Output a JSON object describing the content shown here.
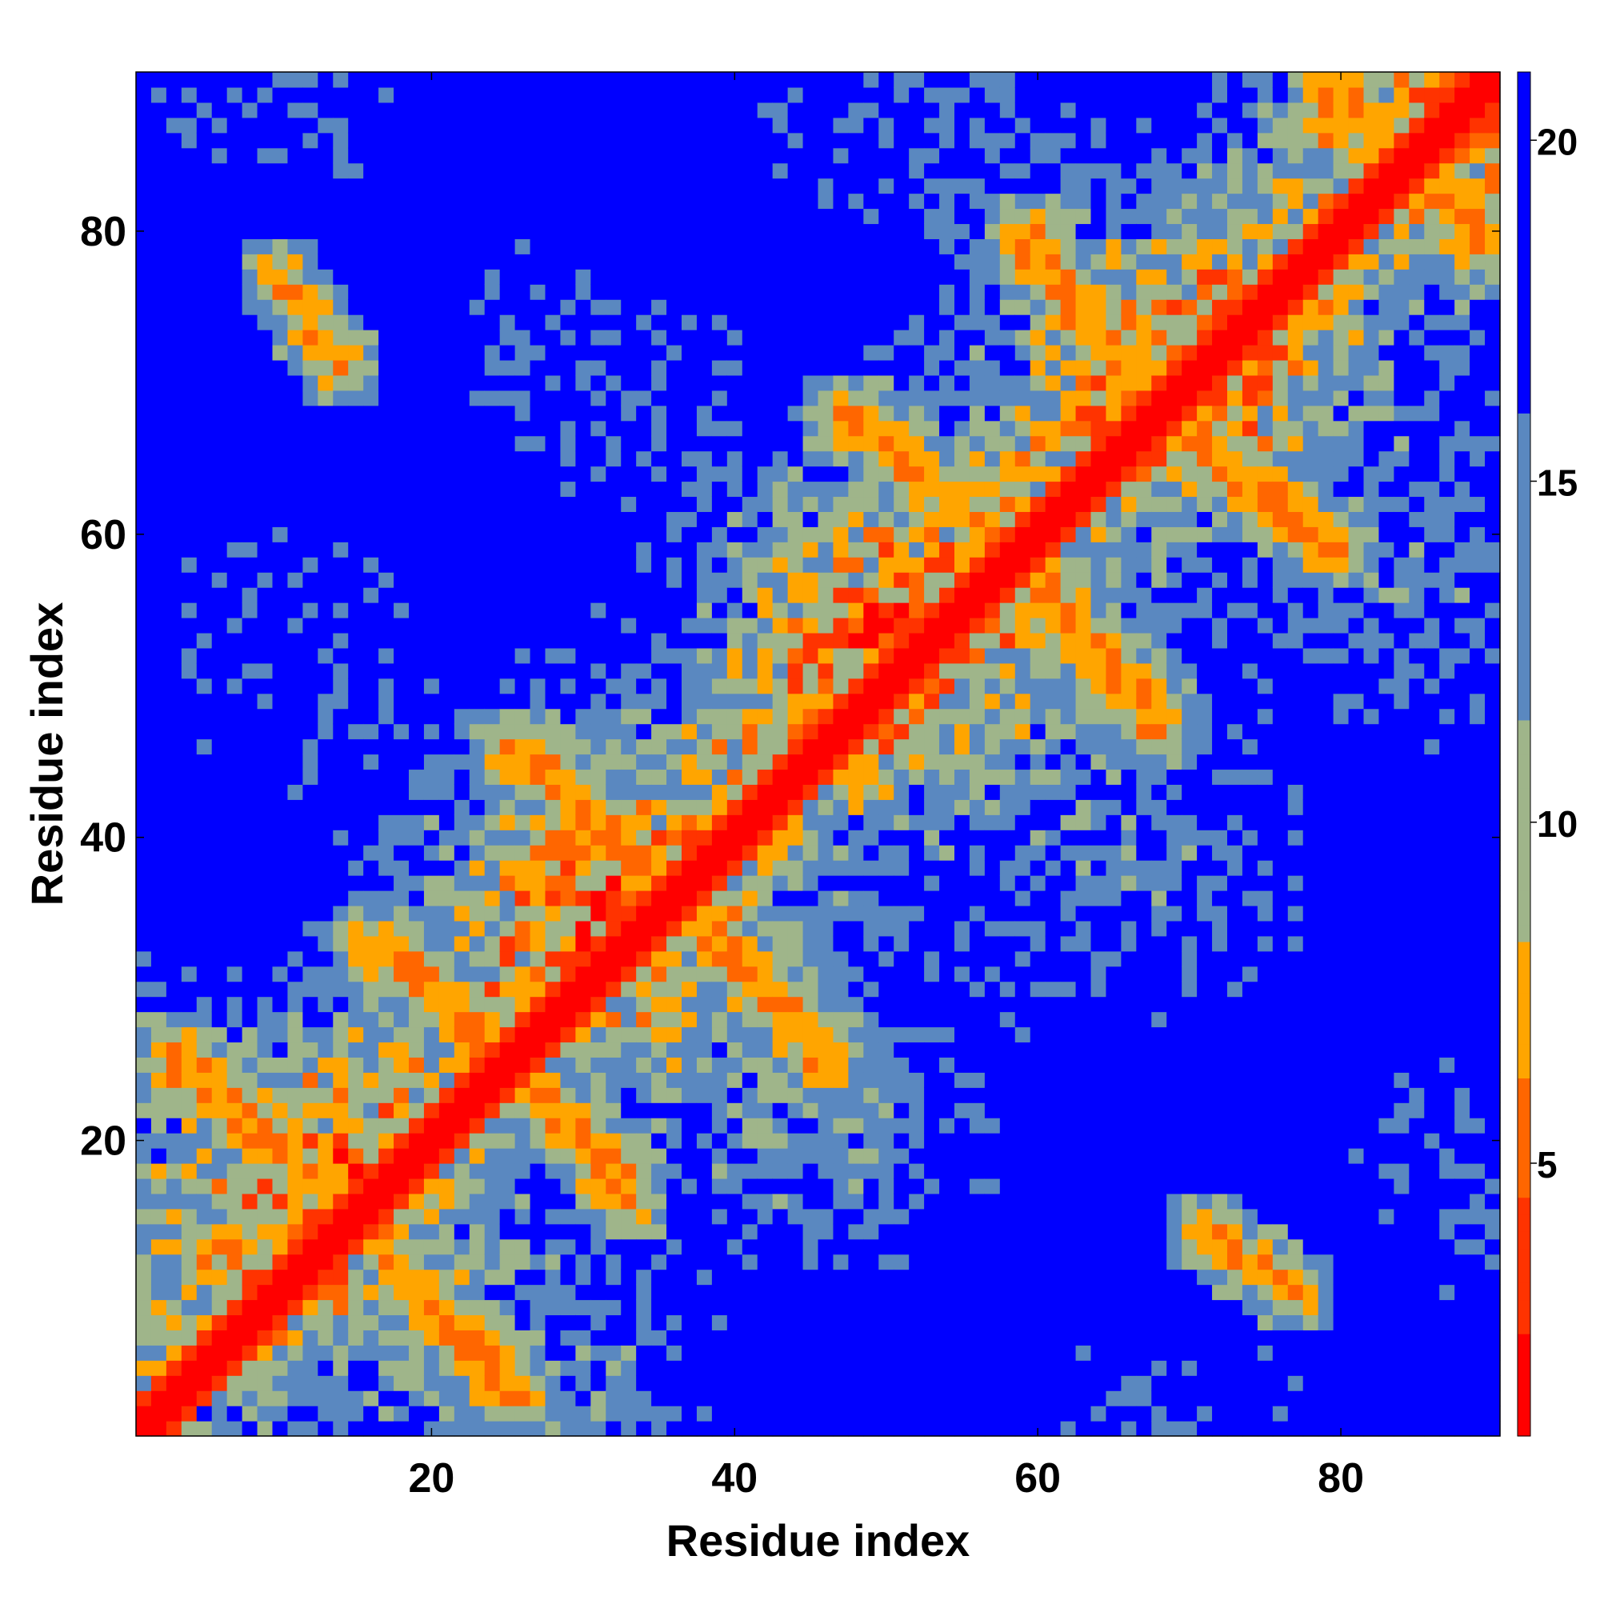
{
  "chart_data": {
    "type": "heatmap",
    "description_type": "residue contact/distance map",
    "xlabel": "Residue index",
    "ylabel": "Residue index",
    "residue_count": 90,
    "xlim": [
      1,
      90
    ],
    "ylim": [
      1,
      90
    ],
    "x_ticks": [
      20,
      40,
      60,
      80
    ],
    "y_ticks": [
      20,
      40,
      60,
      80
    ],
    "colorbar": {
      "ticks": [
        5,
        10,
        15,
        20
      ],
      "min": 1,
      "max": 21,
      "colors": [
        "#ff0000",
        "#ff3300",
        "#ff6600",
        "#ffa500",
        "#9fb58a",
        "#5a88c0",
        "#0000ff"
      ]
    },
    "secondary_structure_contacts": [
      {
        "kind": "diagonal",
        "from": [
          1,
          1
        ],
        "to": [
          90,
          90
        ],
        "band": "red"
      },
      {
        "kind": "anti-diagonal",
        "from": [
          14,
          16
        ],
        "to": [
          25,
          3
        ]
      },
      {
        "kind": "anti-diagonal",
        "from": [
          3,
          26
        ],
        "to": [
          14,
          16
        ]
      },
      {
        "kind": "anti-diagonal",
        "from": [
          17,
          33
        ],
        "to": [
          26,
          24
        ]
      },
      {
        "kind": "anti-diagonal",
        "from": [
          26,
          24
        ],
        "to": [
          33,
          16
        ]
      },
      {
        "kind": "anti-diagonal",
        "from": [
          25,
          46
        ],
        "to": [
          35,
          37
        ]
      },
      {
        "kind": "anti-diagonal",
        "from": [
          37,
          35
        ],
        "to": [
          46,
          26
        ]
      },
      {
        "kind": "anti-diagonal",
        "from": [
          45,
          48
        ],
        "to": [
          48,
          44
        ]
      },
      {
        "kind": "anti-diagonal",
        "from": [
          47,
          68
        ],
        "to": [
          57,
          60
        ]
      },
      {
        "kind": "anti-diagonal",
        "from": [
          60,
          57
        ],
        "to": [
          68,
          48
        ]
      },
      {
        "kind": "anti-diagonal",
        "from": [
          59,
          80
        ],
        "to": [
          67,
          70
        ]
      },
      {
        "kind": "anti-diagonal",
        "from": [
          69,
          67
        ],
        "to": [
          79,
          59
        ]
      },
      {
        "kind": "anti-diagonal",
        "from": [
          79,
          89
        ],
        "to": [
          89,
          80
        ]
      },
      {
        "kind": "patch",
        "from": [
          71,
          14
        ],
        "to": [
          77,
          10
        ]
      }
    ]
  }
}
